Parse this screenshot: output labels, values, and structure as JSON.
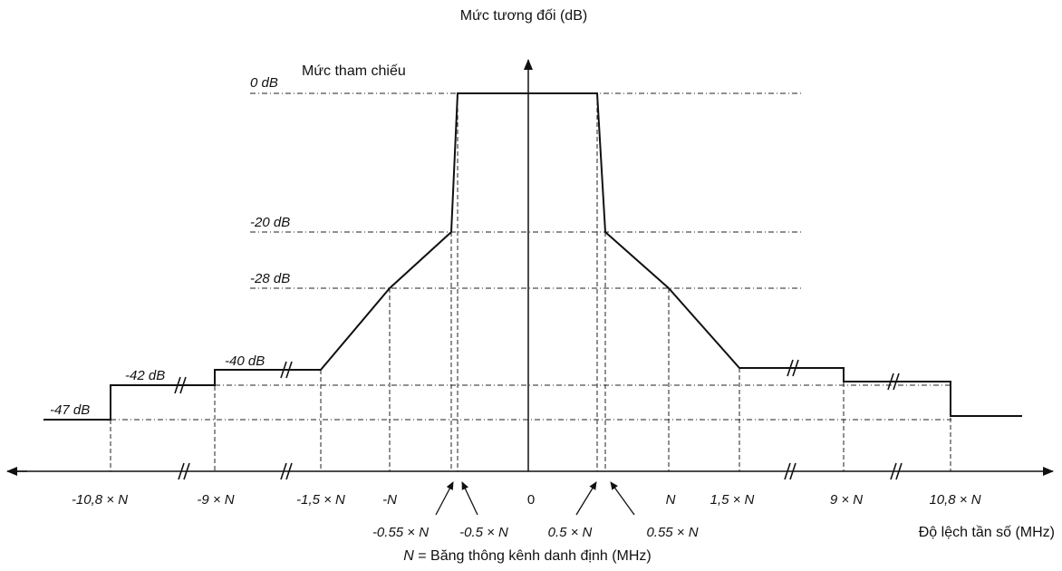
{
  "title": "Mức tương đối (dB)",
  "reference_label": "Mức tham chiếu",
  "level_labels": {
    "l0": "0 dB",
    "l20": "-20 dB",
    "l28": "-28 dB",
    "l40": "-40 dB",
    "l42": "-42 dB",
    "l47": "-47 dB"
  },
  "x_axis": {
    "label": "Độ lệch tần số (MHz)",
    "ticks": {
      "m108": "-10,8 × N",
      "m9": "-9 × N",
      "m15": "-1,5 × N",
      "mN": "-N",
      "zero": "0",
      "pN": "N",
      "p15": "1,5 × N",
      "p9": "9 × N",
      "p108": "10,8 × N"
    },
    "lower_ticks": {
      "m055": "-0.55 × N",
      "m05": "-0.5 × N",
      "p05": "0.5 × N",
      "p055": "0.55 × N"
    }
  },
  "footnote": {
    "var": "N",
    "text": " = Băng thông kênh danh định (MHz)"
  },
  "mask_points": [
    {
      "offset": "-10,8 × N",
      "level_db": -47
    },
    {
      "offset": "-9 × N",
      "level_db": -42
    },
    {
      "offset": "-1,5 × N",
      "level_db": -40
    },
    {
      "offset": "-N",
      "level_db": -28
    },
    {
      "offset": "-0.55 × N",
      "level_db": -20
    },
    {
      "offset": "-0.5 × N",
      "level_db": 0
    },
    {
      "offset": "0.5 × N",
      "level_db": 0
    },
    {
      "offset": "0.55 × N",
      "level_db": -20
    },
    {
      "offset": "N",
      "level_db": -28
    },
    {
      "offset": "1,5 × N",
      "level_db": -40
    },
    {
      "offset": "9 × N",
      "level_db": -42
    },
    {
      "offset": "10,8 × N",
      "level_db": -47
    }
  ]
}
